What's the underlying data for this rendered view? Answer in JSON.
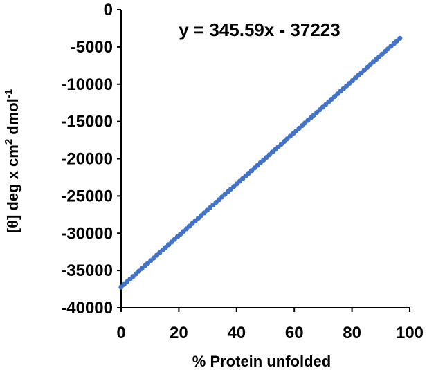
{
  "chart_data": {
    "type": "scatter",
    "title": "",
    "xlabel": "% Protein unfolded",
    "ylabel": "[θ] deg x cm² dmol⁻¹",
    "ylabel_parts": {
      "main": "[θ] deg x cm",
      "sup1": "2",
      "mid": " dmol",
      "sup2": "-1"
    },
    "xlim": [
      0,
      100
    ],
    "ylim": [
      -40000,
      0
    ],
    "xticks": [
      "0",
      "20",
      "40",
      "60",
      "80",
      "100"
    ],
    "yticks": [
      "0",
      "-5000",
      "-10000",
      "-15000",
      "-20000",
      "-25000",
      "-30000",
      "-35000",
      "-40000"
    ],
    "equation": "y = 345.59x - 37223",
    "fit": {
      "slope": 345.59,
      "intercept": -37223
    },
    "x_range": [
      0,
      96.6
    ],
    "n_points": 95,
    "marker_color": "#4472C4",
    "grid": false,
    "legend": "none"
  }
}
